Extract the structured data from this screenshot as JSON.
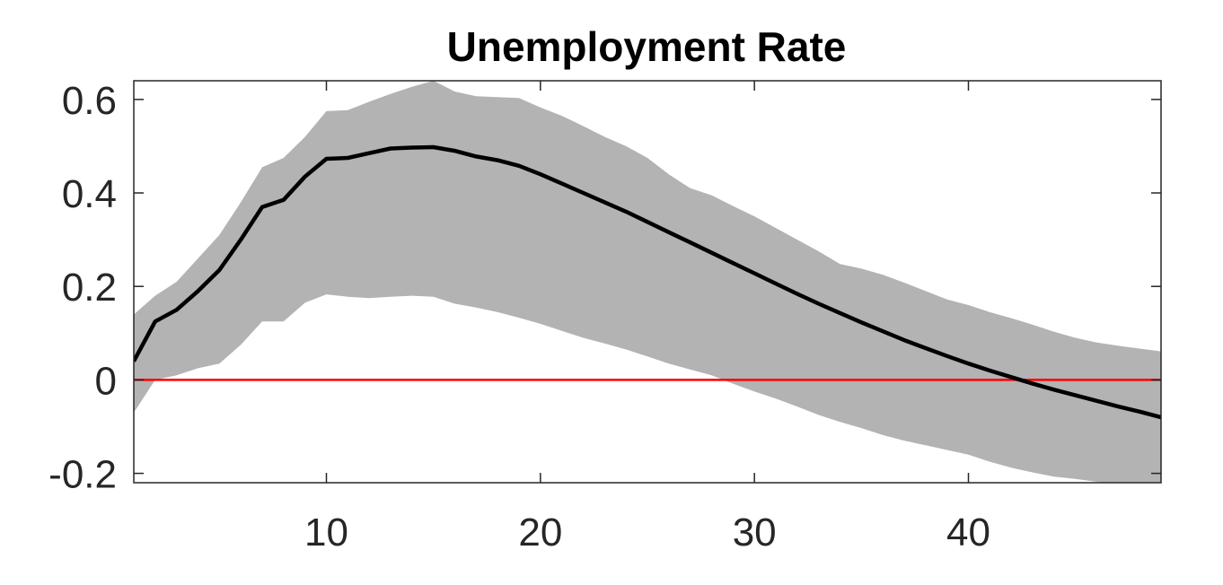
{
  "chart_data": {
    "type": "line",
    "title": "Unemployment Rate",
    "xlabel": "",
    "ylabel": "",
    "xlim": [
      1,
      49
    ],
    "ylim": [
      -0.22,
      0.64
    ],
    "x_ticks": [
      10,
      20,
      30,
      40
    ],
    "x_tick_labels": [
      "10",
      "20",
      "30",
      "40"
    ],
    "y_ticks": [
      -0.2,
      0,
      0.2,
      0.4,
      0.6
    ],
    "y_tick_labels": [
      "-0.2",
      "0",
      "0.2",
      "0.4",
      "0.6"
    ],
    "grid": false,
    "series": [
      {
        "role": "point-estimate",
        "color": "#000000",
        "x": [
          1,
          2,
          3,
          4,
          5,
          6,
          7,
          8,
          9,
          10,
          11,
          12,
          13,
          14,
          15,
          16,
          17,
          18,
          19,
          20,
          21,
          22,
          23,
          24,
          25,
          26,
          27,
          28,
          29,
          30,
          31,
          32,
          33,
          34,
          35,
          36,
          37,
          38,
          39,
          40,
          41,
          42,
          43,
          44,
          45,
          46,
          47,
          48,
          49
        ],
        "values": [
          0.04,
          0.125,
          0.15,
          0.19,
          0.235,
          0.3,
          0.37,
          0.385,
          0.435,
          0.473,
          0.475,
          0.485,
          0.495,
          0.497,
          0.498,
          0.49,
          0.478,
          0.47,
          0.458,
          0.44,
          0.42,
          0.4,
          0.38,
          0.36,
          0.338,
          0.316,
          0.294,
          0.272,
          0.25,
          0.228,
          0.206,
          0.184,
          0.163,
          0.143,
          0.123,
          0.104,
          0.085,
          0.068,
          0.051,
          0.035,
          0.02,
          0.006,
          -0.008,
          -0.021,
          -0.033,
          -0.045,
          -0.057,
          -0.068,
          -0.08
        ]
      },
      {
        "role": "confidence-band",
        "color": "#b3b3b3",
        "x": [
          1,
          2,
          3,
          4,
          5,
          6,
          7,
          8,
          9,
          10,
          11,
          12,
          13,
          14,
          15,
          16,
          17,
          18,
          19,
          20,
          21,
          22,
          23,
          24,
          25,
          26,
          27,
          28,
          29,
          30,
          31,
          32,
          33,
          34,
          35,
          36,
          37,
          38,
          39,
          40,
          41,
          42,
          43,
          44,
          45,
          46,
          47,
          48,
          49
        ],
        "upper": [
          0.14,
          0.18,
          0.21,
          0.26,
          0.31,
          0.38,
          0.455,
          0.475,
          0.52,
          0.575,
          0.577,
          0.595,
          0.612,
          0.627,
          0.64,
          0.617,
          0.607,
          0.605,
          0.603,
          0.583,
          0.565,
          0.543,
          0.52,
          0.5,
          0.475,
          0.44,
          0.41,
          0.395,
          0.372,
          0.35,
          0.325,
          0.3,
          0.275,
          0.248,
          0.238,
          0.225,
          0.208,
          0.19,
          0.172,
          0.16,
          0.145,
          0.132,
          0.118,
          0.103,
          0.09,
          0.08,
          0.073,
          0.067,
          0.061
        ],
        "lower": [
          -0.07,
          0.0,
          0.01,
          0.025,
          0.035,
          0.075,
          0.125,
          0.125,
          0.165,
          0.183,
          0.178,
          0.175,
          0.178,
          0.18,
          0.178,
          0.163,
          0.155,
          0.145,
          0.133,
          0.12,
          0.105,
          0.09,
          0.078,
          0.065,
          0.05,
          0.035,
          0.022,
          0.01,
          -0.008,
          -0.025,
          -0.04,
          -0.057,
          -0.075,
          -0.09,
          -0.103,
          -0.118,
          -0.13,
          -0.14,
          -0.15,
          -0.16,
          -0.175,
          -0.188,
          -0.198,
          -0.207,
          -0.212,
          -0.218,
          -0.222,
          -0.225,
          -0.228
        ]
      },
      {
        "role": "zero-line",
        "color": "#ff0000",
        "y": 0
      }
    ]
  }
}
